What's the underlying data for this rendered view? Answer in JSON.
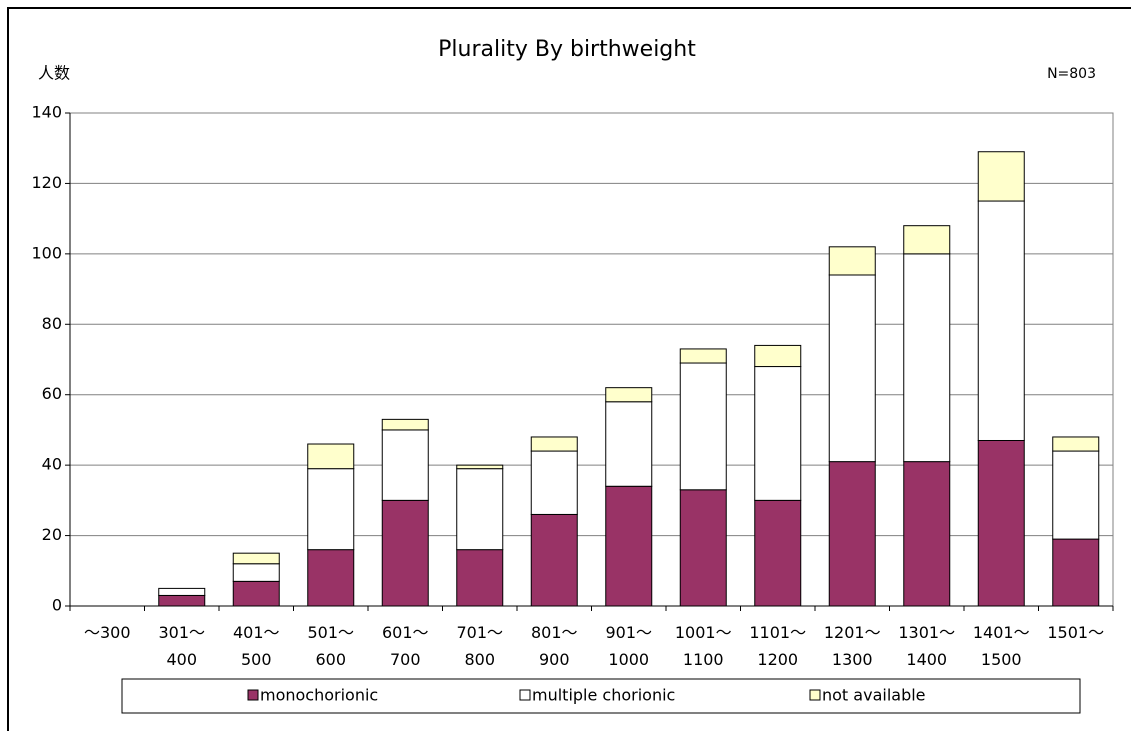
{
  "chart_data": {
    "type": "stacked_bar",
    "title": "Plurality By birthweight",
    "y_label": "人数",
    "annotation": "N=803",
    "categories": [
      "～300",
      "301～\n400",
      "401～\n500",
      "501～\n600",
      "601～\n700",
      "701～\n800",
      "801～\n900",
      "901～\n1000",
      "1001～\n1100",
      "1101～\n1200",
      "1201～\n1300",
      "1301～\n1400",
      "1401～\n1500",
      "1501～"
    ],
    "series": [
      {
        "name": "monochorionic",
        "color": "#993366",
        "values": [
          0,
          3,
          7,
          16,
          30,
          16,
          26,
          34,
          33,
          30,
          41,
          41,
          47,
          19
        ]
      },
      {
        "name": "multiple chorionic",
        "color": "#ffffff",
        "values": [
          0,
          2,
          5,
          23,
          20,
          23,
          18,
          24,
          36,
          38,
          53,
          59,
          68,
          25
        ]
      },
      {
        "name": "not available",
        "color": "#ffffcc",
        "values": [
          0,
          0,
          3,
          7,
          3,
          1,
          4,
          4,
          4,
          6,
          8,
          8,
          14,
          4
        ]
      }
    ],
    "ylim": [
      0,
      140
    ],
    "yticks": [
      0,
      20,
      40,
      60,
      80,
      100,
      120,
      140
    ],
    "grid": true,
    "legend": "bottom"
  }
}
